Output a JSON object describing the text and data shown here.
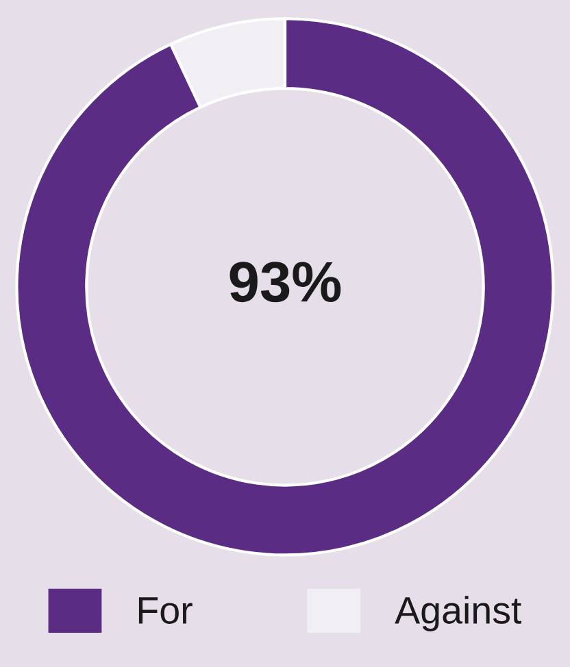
{
  "chart_data": {
    "type": "donut",
    "categories": [
      "For",
      "Against"
    ],
    "values": [
      93,
      7
    ],
    "colors": [
      "#5b2c83",
      "#f1eff4"
    ],
    "annotations": [
      "93%"
    ],
    "legend": "bottom"
  }
}
